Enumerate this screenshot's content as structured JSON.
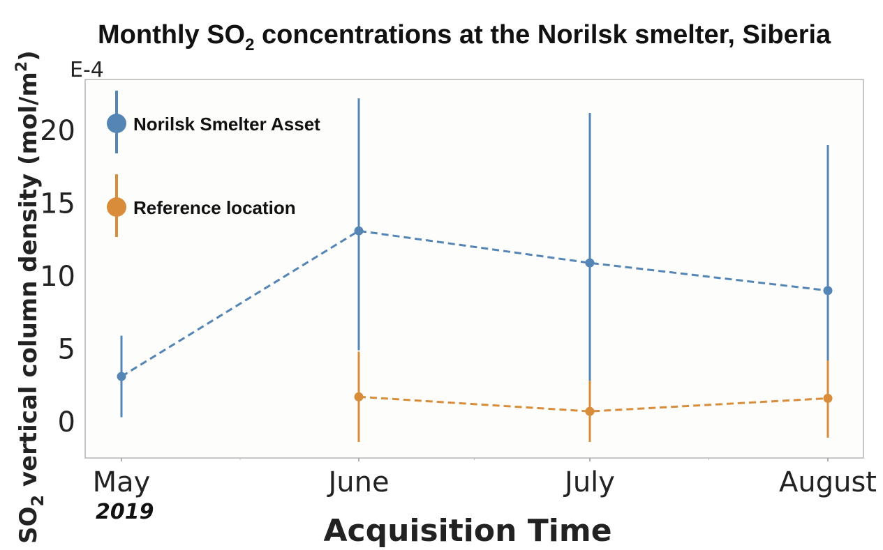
{
  "chart_data": {
    "type": "line",
    "title_prefix": "Monthly SO",
    "title_sub": "2",
    "title_suffix": " concentrations at the Norilsk smelter, Siberia",
    "exponent_label": "E-4",
    "ylabel_prefix": "SO",
    "ylabel_sub": "2",
    "ylabel_suffix": " vertical column density (mol/m",
    "ylabel_sup": "2",
    "ylabel_end": ")",
    "xlabel": "Acquisition Time",
    "x_sublabel": "2019",
    "categories": [
      "May",
      "June",
      "July",
      "August"
    ],
    "ylim": [
      -2.5,
      23.5
    ],
    "yticks": [
      "0",
      "5",
      "10",
      "15",
      "20"
    ],
    "grid": false,
    "legend_position": "top-left",
    "series": [
      {
        "name": "Norilsk Smelter Asset",
        "color": "#5585b5",
        "values": [
          3.1,
          13.1,
          10.9,
          9.0
        ],
        "lower": [
          0.3,
          4.9,
          2.8,
          -1.1
        ],
        "upper": [
          5.9,
          22.2,
          21.2,
          19.0
        ]
      },
      {
        "name": "Reference location",
        "color": "#d98c3a",
        "values": [
          null,
          1.7,
          0.7,
          1.6
        ],
        "lower": [
          null,
          -1.4,
          -1.4,
          -1.1
        ],
        "upper": [
          null,
          4.8,
          2.8,
          4.2
        ]
      }
    ]
  }
}
